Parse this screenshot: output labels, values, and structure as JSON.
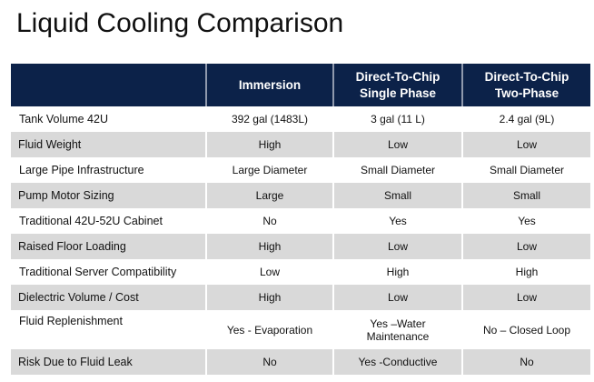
{
  "title": "Liquid Cooling Comparison",
  "table": {
    "headers": [
      "",
      "Immersion",
      "Direct-To-Chip\nSingle Phase",
      "Direct-To-Chip\nTwo-Phase"
    ],
    "header_lines": [
      [
        ""
      ],
      [
        "Immersion"
      ],
      [
        "Direct-To-Chip",
        "Single Phase"
      ],
      [
        "Direct-To-Chip",
        "Two-Phase"
      ]
    ],
    "rows": [
      [
        "Tank Volume 42U",
        "392 gal (1483L)",
        "3 gal (11 L)",
        "2.4 gal (9L)"
      ],
      [
        "Fluid Weight",
        "High",
        "Low",
        "Low"
      ],
      [
        "Large Pipe Infrastructure",
        "Large Diameter",
        "Small Diameter",
        "Small Diameter"
      ],
      [
        "Pump Motor Sizing",
        "Large",
        "Small",
        "Small"
      ],
      [
        "Traditional 42U-52U Cabinet",
        "No",
        "Yes",
        "Yes"
      ],
      [
        "Raised Floor Loading",
        "High",
        "Low",
        "Low"
      ],
      [
        "Traditional Server Compatibility",
        "Low",
        "High",
        "High"
      ],
      [
        "Dielectric Volume / Cost",
        "High",
        "Low",
        "Low"
      ],
      [
        "Fluid Replenishment",
        "Yes - Evaporation",
        "Yes –Water Maintenance",
        "No – Closed Loop"
      ],
      [
        "Risk Due to Fluid Leak",
        "No",
        "Yes -Conductive",
        "No"
      ]
    ]
  },
  "colors": {
    "header_bg": "#0c2249",
    "header_text": "#ffffff",
    "stripe_bg": "#d9d9d9"
  }
}
